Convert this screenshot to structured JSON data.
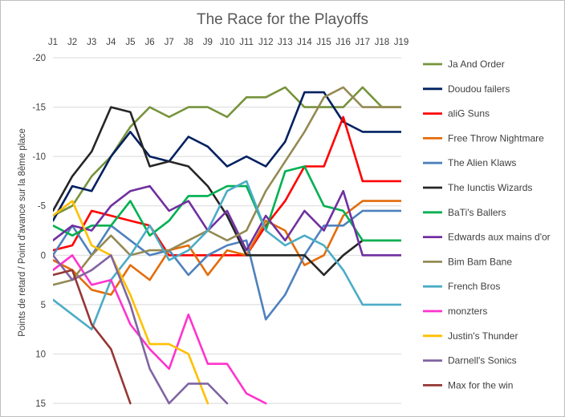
{
  "chart_data": {
    "type": "line",
    "title": "The Race for the Playoffs",
    "ylabel": "Points de retard  / Point d'avance sur la 8ème place",
    "xlabel": "",
    "categories": [
      "J1",
      "J2",
      "J3",
      "J4",
      "J5",
      "J6",
      "J7",
      "J8",
      "J9",
      "J10",
      "J11",
      "J12",
      "J13",
      "J14",
      "J15",
      "J16",
      "J17",
      "J18",
      "J19"
    ],
    "y_axis": {
      "inverted": true,
      "min": -20,
      "max": 15,
      "step": 5,
      "tick_labels": [
        "-20",
        "-15",
        "-10",
        "-5",
        "0",
        "5",
        "10",
        "15"
      ]
    },
    "grid": true,
    "legend": "right",
    "series": [
      {
        "name": "Ja And Order",
        "color": "#77933c",
        "values": [
          -4,
          -5,
          -8,
          -10,
          -13,
          -15,
          -14,
          -15,
          -15,
          -14,
          -16,
          -16,
          -17,
          -15,
          -15,
          -15,
          -17,
          -15,
          -15
        ]
      },
      {
        "name": "Doudou failers",
        "color": "#002060",
        "values": [
          -3.5,
          -7,
          -6.5,
          -10,
          -12.5,
          -10,
          -9.5,
          -12,
          -11,
          -9,
          -10,
          -9,
          -11.5,
          -16.5,
          -16.5,
          -13.5,
          -12.5,
          -12.5,
          -12.5
        ]
      },
      {
        "name": "aliG Suns",
        "color": "#ff0000",
        "values": [
          -0.5,
          -1,
          -4.5,
          -4,
          -3.5,
          -3,
          0,
          0,
          0,
          0,
          0,
          -3,
          -5.5,
          -9,
          -9,
          -14,
          -7.5,
          -7.5,
          -7.5
        ]
      },
      {
        "name": "Free Throw Nightmare",
        "color": "#e46c0a",
        "values": [
          0.5,
          1.5,
          3.5,
          4,
          1,
          2.5,
          -0.5,
          -1,
          2,
          -0.5,
          0,
          -3.5,
          -2.5,
          1,
          0,
          -4,
          -5.5,
          -5.5,
          -5.5
        ]
      },
      {
        "name": "The Alien Klaws",
        "color": "#4f81bd",
        "values": [
          0,
          -3,
          0,
          -3,
          -1.5,
          0,
          -0.5,
          2,
          0,
          -1,
          -1.5,
          6.5,
          4,
          0,
          -3,
          -3,
          -4.5,
          -4.5,
          -4.5
        ]
      },
      {
        "name": "The Iunctis Wizards",
        "color": "#262626",
        "values": [
          -4.5,
          -8,
          -10.5,
          -15,
          -14.5,
          -9,
          -9.5,
          -9,
          -7,
          -4,
          0,
          0,
          0,
          0,
          2,
          0,
          -1.5,
          -1.5,
          -1.5
        ]
      },
      {
        "name": "BaTi's Ballers",
        "color": "#00b050",
        "values": [
          -3,
          -2,
          -3,
          -3,
          -5.5,
          -2,
          -3.5,
          -6,
          -6,
          -7,
          -7,
          -2.5,
          -8.5,
          -9,
          -5,
          -4.5,
          -1.5,
          -1.5,
          -1.5
        ]
      },
      {
        "name": "Edwards aux mains d'or",
        "color": "#7030a0",
        "values": [
          -1.5,
          -3,
          -2.5,
          -5,
          -6.5,
          -7,
          -4.5,
          -5.5,
          -2.5,
          -4.5,
          -0.5,
          -4,
          -1.5,
          -4.5,
          -2.5,
          -6.5,
          0,
          0,
          0
        ]
      },
      {
        "name": "Bim Bam Bane",
        "color": "#948a54",
        "values": [
          3,
          2.5,
          0,
          -2,
          0,
          -0.5,
          -0.5,
          -1.5,
          -2.5,
          -1.5,
          -2.5,
          -6.5,
          -9.5,
          -12.5,
          -16,
          -17,
          -15,
          -15,
          -15
        ]
      },
      {
        "name": "French Bros",
        "color": "#4bacc6",
        "values": [
          4.5,
          6,
          7.5,
          2.5,
          0,
          -3,
          0.5,
          -0.5,
          -2.5,
          -6.5,
          -7.5,
          -2.5,
          -1,
          -2,
          -1,
          1.5,
          5,
          5,
          5
        ]
      },
      {
        "name": "monzters",
        "color": "#ff33cc",
        "values": [
          1.5,
          0,
          3,
          2.5,
          7,
          9.5,
          11.5,
          6,
          11,
          11,
          14,
          15,
          null,
          null,
          null,
          null,
          null,
          null,
          null
        ]
      },
      {
        "name": "Justin's Thunder",
        "color": "#ffc000",
        "values": [
          -4,
          -5.5,
          -1,
          0,
          4,
          9,
          9,
          10,
          15,
          null,
          null,
          null,
          null,
          null,
          null,
          null,
          null,
          null,
          null
        ]
      },
      {
        "name": "Darnell's Sonics",
        "color": "#8064a2",
        "values": [
          0,
          2.5,
          1.5,
          0,
          5,
          11.5,
          15,
          13,
          13,
          15,
          null,
          null,
          null,
          null,
          null,
          null,
          null,
          null,
          null
        ]
      },
      {
        "name": "Max for the win",
        "color": "#953735",
        "values": [
          2,
          1.5,
          7,
          9.5,
          15,
          null,
          null,
          null,
          null,
          null,
          null,
          null,
          null,
          null,
          null,
          null,
          null,
          null,
          null
        ]
      }
    ]
  }
}
